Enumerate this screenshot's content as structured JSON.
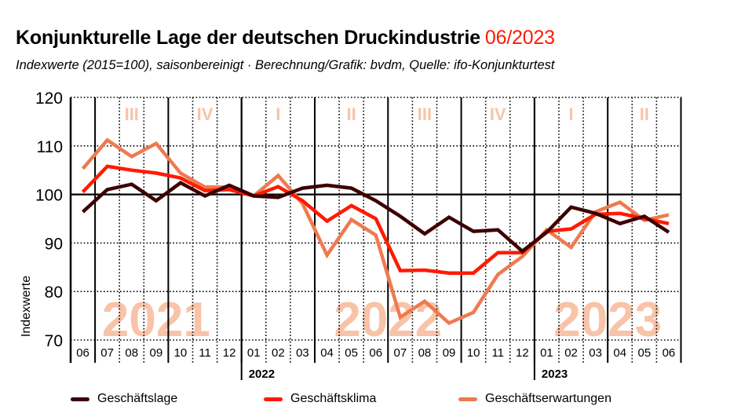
{
  "title": {
    "main": "Konjunkturelle Lage der deutschen Druckindustrie",
    "date": "06/2023"
  },
  "subtitle": "Indexwerte (2015=100), saisonbereinigt · Berechnung/Grafik: bvdm, Quelle: ifo-Konjunkturtest",
  "colors": {
    "geschaeftslage": "#3d0000",
    "geschaeftsklima": "#ff1a00",
    "geschaeftserwartungen": "#ee7a50",
    "watermark": "#f8c3a8",
    "date_accent": "#ff1a00"
  },
  "chart_data": {
    "type": "line",
    "title": "Konjunkturelle Lage der deutschen Druckindustrie 06/2023",
    "xlabel": "",
    "ylabel": "Indexwerte",
    "ylim": [
      70,
      120
    ],
    "yticks": [
      70,
      80,
      90,
      100,
      110,
      120
    ],
    "grid": true,
    "reference_line": 100,
    "x": [
      "06",
      "07",
      "08",
      "09",
      "10",
      "11",
      "12",
      "01",
      "02",
      "03",
      "04",
      "05",
      "06",
      "07",
      "08",
      "09",
      "10",
      "11",
      "12",
      "01",
      "02",
      "03",
      "04",
      "05",
      "06"
    ],
    "year_labels": [
      {
        "label": "2022",
        "start_index": 7
      },
      {
        "label": "2023",
        "start_index": 19
      }
    ],
    "year_watermarks": [
      {
        "label": "2021",
        "from_index": 0,
        "to_index": 6
      },
      {
        "label": "2022",
        "from_index": 10,
        "to_index": 15
      },
      {
        "label": "2023",
        "from_index": 19,
        "to_index": 24
      }
    ],
    "quarter_labels": [
      {
        "label": "III",
        "from_index": 1,
        "to_index": 3
      },
      {
        "label": "IV",
        "from_index": 4,
        "to_index": 6
      },
      {
        "label": "I",
        "from_index": 7,
        "to_index": 9
      },
      {
        "label": "II",
        "from_index": 10,
        "to_index": 12
      },
      {
        "label": "III",
        "from_index": 13,
        "to_index": 15
      },
      {
        "label": "IV",
        "from_index": 16,
        "to_index": 18
      },
      {
        "label": "I",
        "from_index": 19,
        "to_index": 21
      },
      {
        "label": "II",
        "from_index": 22,
        "to_index": 24
      }
    ],
    "series": [
      {
        "name": "Geschäftslage",
        "color": "#3d0000",
        "values": [
          96.4,
          101.0,
          102.1,
          98.7,
          102.4,
          99.7,
          101.9,
          99.7,
          99.4,
          101.3,
          101.9,
          101.3,
          98.7,
          95.5,
          91.9,
          95.3,
          92.4,
          92.7,
          88.3,
          92.2,
          97.4,
          96.1,
          94.0,
          95.5,
          92.2
        ]
      },
      {
        "name": "Geschäftsklima",
        "color": "#ff1a00",
        "values": [
          100.5,
          105.8,
          105.0,
          104.4,
          103.4,
          100.8,
          101.0,
          99.7,
          101.6,
          98.7,
          94.5,
          97.7,
          95.0,
          84.3,
          84.4,
          83.8,
          83.8,
          88.0,
          88.0,
          92.4,
          92.9,
          95.9,
          96.1,
          95.0,
          94.0
        ]
      },
      {
        "name": "Geschäftserwartungen",
        "color": "#ee7a50",
        "values": [
          105.3,
          111.2,
          107.8,
          110.5,
          104.4,
          101.5,
          101.5,
          99.7,
          103.9,
          98.1,
          87.5,
          94.8,
          91.6,
          74.7,
          78.0,
          73.5,
          75.7,
          83.5,
          87.2,
          92.7,
          89.1,
          96.4,
          98.4,
          94.7,
          95.8
        ]
      }
    ],
    "legend": [
      "Geschäftslage",
      "Geschäftsklima",
      "Geschäftserwartungen"
    ],
    "legend_position": "bottom"
  }
}
